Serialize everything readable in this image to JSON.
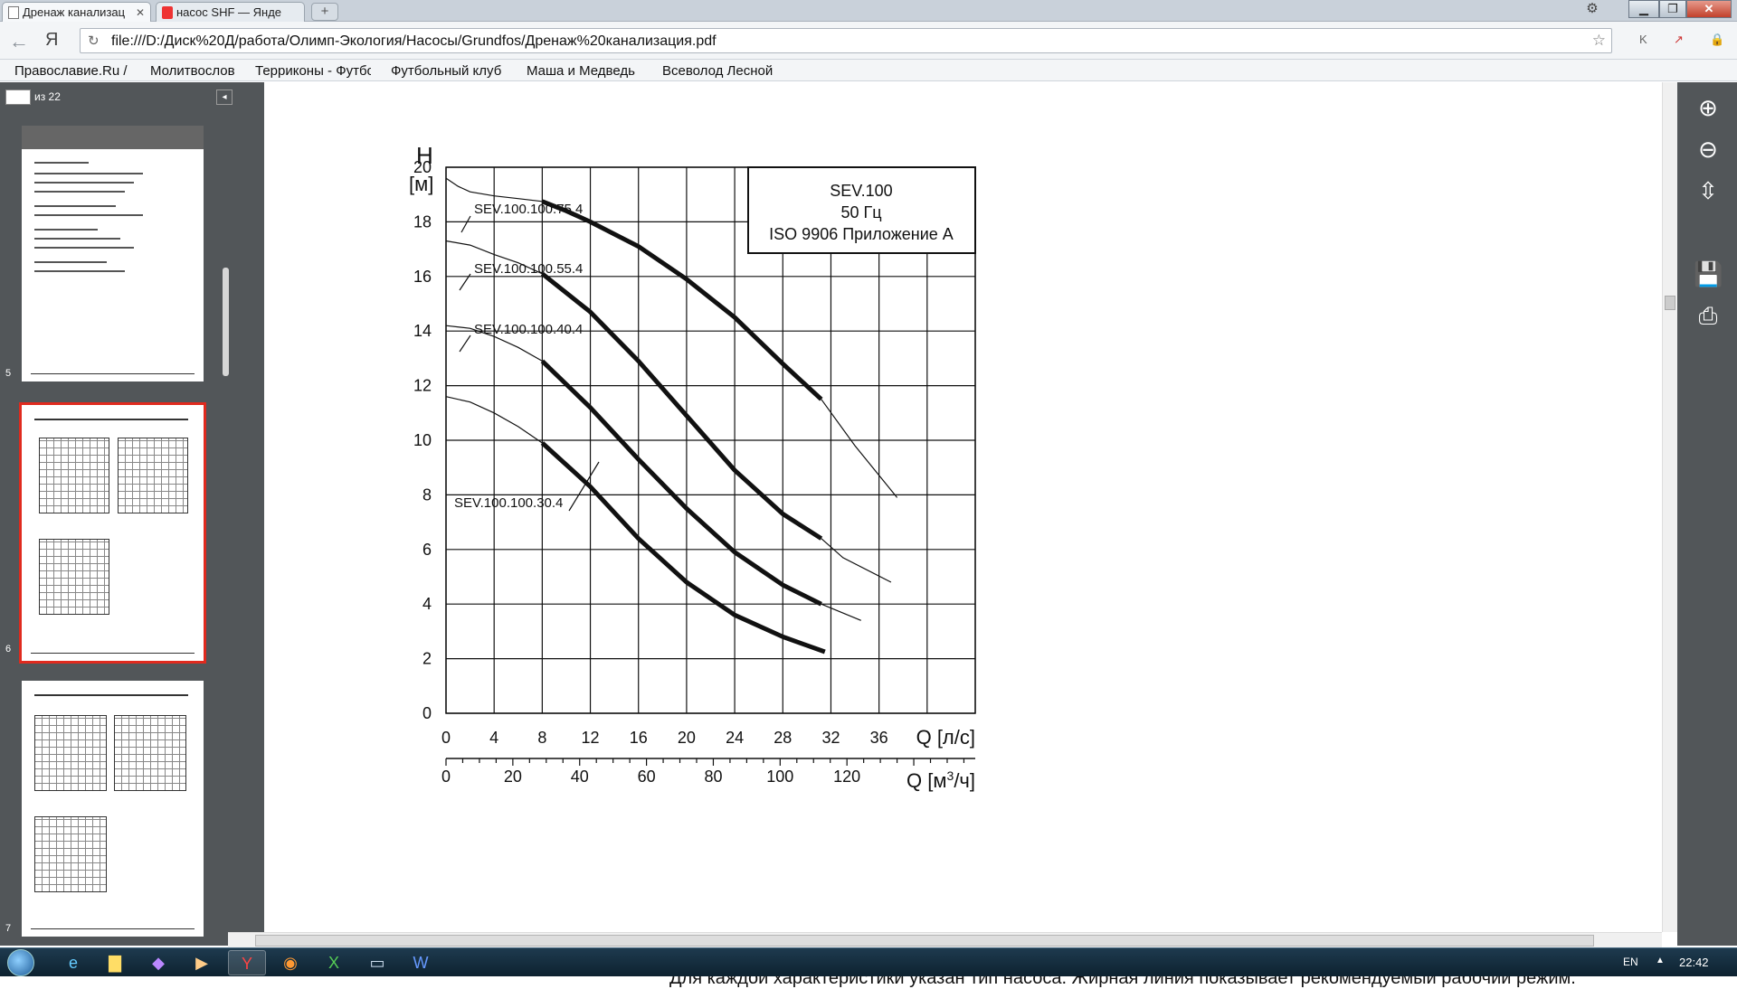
{
  "tabs": [
    {
      "label": "Дренаж канализац",
      "active": true,
      "favicon": "document-icon"
    },
    {
      "label": "насос SHF — Янде",
      "active": false,
      "favicon": "yandex-icon"
    }
  ],
  "new_tab_label": "+",
  "url": "file:///D:/Диск%20Д/работа/Олимп-Экология/Насосы/Grundfos/Дренаж%20канализация.pdf",
  "yandex_button": "Я",
  "bookmarks": [
    "Православие.Ru /",
    "Молитвослов",
    "Терриконы - Футбо",
    "Футбольный клуб",
    "Маша и Медведь",
    "Всеволод Лесной"
  ],
  "viewer": {
    "page_count_label": "из 22",
    "thumbnails": [
      {
        "number": "5",
        "selected": false
      },
      {
        "number": "6",
        "selected": true
      },
      {
        "number": "7",
        "selected": false
      }
    ]
  },
  "chart_data": {
    "type": "line",
    "y_axis_label_top": "H",
    "y_axis_unit": "[м]",
    "ylim": [
      0,
      20
    ],
    "y_ticks": [
      "0",
      "2",
      "4",
      "6",
      "8",
      "10",
      "12",
      "14",
      "16",
      "18",
      "20"
    ],
    "xlim": [
      0,
      44
    ],
    "x_ticks_ls": [
      "0",
      "4",
      "8",
      "12",
      "16",
      "20",
      "24",
      "28",
      "32",
      "36"
    ],
    "x_label_ls": "Q [л/с]",
    "x_ticks_m3h": [
      "0",
      "20",
      "40",
      "60",
      "80",
      "100",
      "120"
    ],
    "x_label_m3h_prefix": "Q [м",
    "x_label_m3h_sup": "3",
    "x_label_m3h_suffix": "/ч]",
    "legend_box": [
      "SEV.100",
      "50 Гц",
      "ISO 9906 Приложение А"
    ],
    "grid": true,
    "series": [
      {
        "name": "SEV.100.100.75.4",
        "curve": [
          [
            0,
            19.6
          ],
          [
            1,
            19.3
          ],
          [
            2,
            19.1
          ],
          [
            4,
            18.95
          ],
          [
            6,
            18.85
          ],
          [
            8,
            18.75
          ]
        ],
        "bold": [
          [
            8,
            18.75
          ],
          [
            10,
            18.4
          ],
          [
            12,
            18.0
          ],
          [
            16,
            17.1
          ],
          [
            20,
            15.9
          ],
          [
            24,
            14.5
          ],
          [
            28,
            12.8
          ],
          [
            31.2,
            11.5
          ]
        ],
        "thin_tail": [
          [
            31.2,
            11.5
          ],
          [
            34,
            9.8
          ],
          [
            37.5,
            7.9
          ]
        ]
      },
      {
        "name": "SEV.100.100.55.4",
        "curve": [
          [
            0,
            17.3
          ],
          [
            2,
            17.15
          ],
          [
            4,
            16.8
          ],
          [
            6,
            16.5
          ],
          [
            8,
            16.1
          ]
        ],
        "bold": [
          [
            8,
            16.1
          ],
          [
            12,
            14.7
          ],
          [
            16,
            12.9
          ],
          [
            20,
            10.9
          ],
          [
            24,
            8.9
          ],
          [
            28,
            7.3
          ],
          [
            31.2,
            6.4
          ]
        ],
        "thin_tail": [
          [
            31.2,
            6.4
          ],
          [
            33,
            5.7
          ],
          [
            37,
            4.8
          ]
        ]
      },
      {
        "name": "SEV.100.100.40.4",
        "curve": [
          [
            0,
            14.2
          ],
          [
            2,
            14.1
          ],
          [
            4,
            13.8
          ],
          [
            6,
            13.4
          ],
          [
            8,
            12.9
          ]
        ],
        "bold": [
          [
            8,
            12.9
          ],
          [
            12,
            11.2
          ],
          [
            16,
            9.3
          ],
          [
            20,
            7.5
          ],
          [
            24,
            5.9
          ],
          [
            28,
            4.7
          ],
          [
            31.2,
            4.0
          ]
        ],
        "thin_tail": [
          [
            31.2,
            4.0
          ],
          [
            34.5,
            3.4
          ]
        ]
      },
      {
        "name": "SEV.100.100.30.4",
        "curve": [
          [
            0,
            11.6
          ],
          [
            2,
            11.4
          ],
          [
            4,
            11.0
          ],
          [
            6,
            10.5
          ],
          [
            8,
            9.9
          ]
        ],
        "bold": [
          [
            8,
            9.9
          ],
          [
            12,
            8.3
          ],
          [
            16,
            6.4
          ],
          [
            20,
            4.8
          ],
          [
            24,
            3.6
          ],
          [
            28,
            2.8
          ],
          [
            31.5,
            2.25
          ]
        ],
        "thin_tail": []
      }
    ]
  },
  "caption": "Для каждой характеристики указан тип насоса. Жирная линия показывает рекомендуемый рабочий режим.",
  "taskbar": {
    "language": "EN",
    "clock": "22:42"
  }
}
